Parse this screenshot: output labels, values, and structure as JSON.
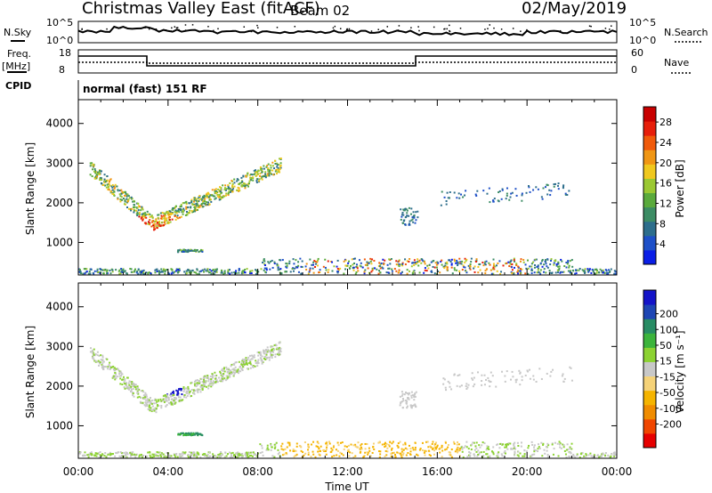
{
  "header": {
    "title": "Christmas Valley East (fitACF)",
    "beam": "Beam 02",
    "date": "02/May/2019"
  },
  "labels": {
    "nsky": "N.Sky",
    "nsearch": "N.Search",
    "freq": "Freq.",
    "freq_unit": "[MHz]",
    "nave": "Nave",
    "cpid": "CPID",
    "mode": "normal (fast) 151 RF"
  },
  "noise_panel": {
    "left_ticks": [
      "10^5",
      "10^0"
    ],
    "right_ticks": [
      "10^5",
      "10^0"
    ]
  },
  "freq_panel": {
    "left_ticks": [
      "18",
      "8"
    ],
    "right_ticks": [
      "60",
      "0"
    ]
  },
  "time_axis": {
    "ticks": [
      "00:00",
      "04:00",
      "08:00",
      "12:00",
      "16:00",
      "20:00",
      "00:00"
    ],
    "label": "Time UT"
  },
  "colors": {
    "power_scale": [
      "#0a1ee6",
      "#1e50c8",
      "#2d6e8c",
      "#3c8c64",
      "#5aaa3c",
      "#9bc832",
      "#f0c81e",
      "#f09614",
      "#f05a0a",
      "#e61e0a",
      "#c80000"
    ],
    "velocity_scale": [
      "#e60000",
      "#f04600",
      "#f08c00",
      "#f5b400",
      "#f5d278",
      "#c8c8c8",
      "#8cd232",
      "#3cb43c",
      "#288c64",
      "#1e46b4",
      "#1414c8"
    ]
  },
  "chart_data": [
    {
      "type": "heatmap",
      "name": "power-panel",
      "ylabel": "Slant Range [km]",
      "yticks": [
        1000,
        2000,
        3000,
        4000
      ],
      "ylim": [
        180,
        4600
      ],
      "xlim": [
        0,
        24
      ],
      "colorbar_label": "Power [dB]",
      "colorbar_ticks": [
        "4",
        "8",
        "12",
        "16",
        "20",
        "24",
        "28"
      ],
      "colorbar_range": [
        0,
        31
      ]
    },
    {
      "type": "heatmap",
      "name": "velocity-panel",
      "ylabel": "Slant Range [km]",
      "yticks": [
        1000,
        2000,
        3000,
        4000
      ],
      "ylim": [
        180,
        4600
      ],
      "xlim": [
        0,
        24
      ],
      "colorbar_label": "Velocity [m s⁻¹]",
      "colorbar_ticks": [
        "-200",
        "-100",
        "-50",
        "-15",
        "15",
        "50",
        "100",
        "200"
      ]
    }
  ]
}
